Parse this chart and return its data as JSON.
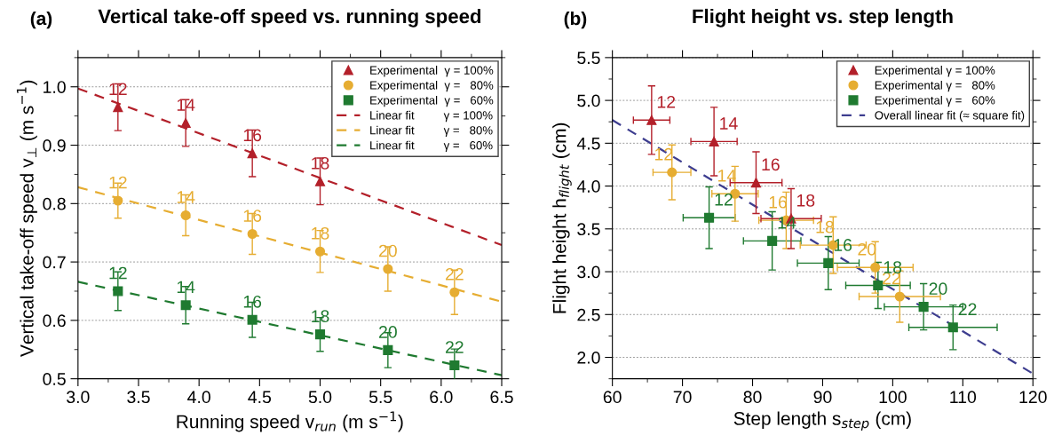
{
  "chart_data": [
    {
      "type": "scatter",
      "title": "Vertical take-off speed vs. running speed",
      "xlabel": "Running speed v$_{run}$ (m s$^{−1}$)",
      "ylabel": "Vertical take-off speed v$_{⊥}$ (m s$^{−1}$)",
      "annotations": [
        "(a)",
        {
          "text": "12",
          "x": 3.33,
          "y": 0.965
        },
        {
          "text": "14",
          "x": 3.89,
          "y": 0.938
        },
        {
          "text": "16",
          "x": 4.44,
          "y": 0.886
        },
        {
          "text": "18",
          "x": 5.0,
          "y": 0.838
        },
        {
          "text": "12",
          "x": 3.33,
          "y": 0.805
        },
        {
          "text": "14",
          "x": 3.89,
          "y": 0.78
        },
        {
          "text": "16",
          "x": 4.44,
          "y": 0.748
        },
        {
          "text": "18",
          "x": 5.0,
          "y": 0.718
        },
        {
          "text": "20",
          "x": 5.56,
          "y": 0.688
        },
        {
          "text": "22",
          "x": 6.11,
          "y": 0.648
        },
        {
          "text": "12",
          "x": 3.33,
          "y": 0.65
        },
        {
          "text": "14",
          "x": 3.89,
          "y": 0.626
        },
        {
          "text": "16",
          "x": 4.44,
          "y": 0.601
        },
        {
          "text": "18",
          "x": 5.0,
          "y": 0.576
        },
        {
          "text": "20",
          "x": 5.56,
          "y": 0.549
        },
        {
          "text": "22",
          "x": 6.11,
          "y": 0.523
        }
      ],
      "xlim": [
        3.0,
        6.5
      ],
      "xticks": [
        {
          "value": 3.0,
          "label": "3.0"
        },
        {
          "value": 3.5,
          "label": "3.5"
        },
        {
          "value": 4.0,
          "label": "4.0"
        },
        {
          "value": 4.5,
          "label": "4.5"
        },
        {
          "value": 5.0,
          "label": "5.0"
        },
        {
          "value": 5.5,
          "label": "5.5"
        },
        {
          "value": 6.0,
          "label": "6.0"
        },
        {
          "value": 6.5,
          "label": "6.5"
        }
      ],
      "ylim": [
        0.5,
        1.05
      ],
      "yticks": [
        0.5,
        0.6,
        0.7,
        0.8,
        0.9,
        {
          "value": 1.0,
          "label": "1.0"
        }
      ],
      "grid": "y",
      "legend": "top right",
      "series": [
        {
          "name": "Experimental  γ = 100%",
          "marker": "triangle",
          "color": "#b3202a",
          "x": [
            3.33,
            3.89,
            4.44,
            5.0
          ],
          "values": [
            0.965,
            0.938,
            0.886,
            0.838
          ],
          "errors": [
            0.04,
            0.04,
            0.04,
            0.04
          ]
        },
        {
          "name": "Experimental  γ =   80%",
          "marker": "circle",
          "color": "#e6ad32",
          "x": [
            3.33,
            3.89,
            4.44,
            5.0,
            5.56,
            6.11
          ],
          "values": [
            0.805,
            0.78,
            0.748,
            0.718,
            0.688,
            0.648
          ],
          "errors": [
            0.03,
            0.035,
            0.035,
            0.036,
            0.038,
            0.038
          ]
        },
        {
          "name": "Experimental  γ =   60%",
          "marker": "square",
          "color": "#1f7a30",
          "x": [
            3.33,
            3.89,
            4.44,
            5.0,
            5.56,
            6.11
          ],
          "values": [
            0.65,
            0.626,
            0.601,
            0.576,
            0.549,
            0.523
          ],
          "errors": [
            0.033,
            0.032,
            0.03,
            0.029,
            0.03,
            0.028
          ]
        },
        {
          "name": "Linear fit         γ = 100%",
          "type": "line",
          "line_style": "dashed",
          "color": "#b3202a",
          "x": [
            3.0,
            6.5
          ],
          "values": [
            0.997,
            0.729
          ]
        },
        {
          "name": "Linear fit         γ =   80%",
          "type": "line",
          "line_style": "dashed",
          "color": "#e6ad32",
          "x": [
            3.0,
            6.5
          ],
          "values": [
            0.828,
            0.632
          ]
        },
        {
          "name": "Linear fit         γ =   60%",
          "type": "line",
          "line_style": "dashed",
          "color": "#1f7a30",
          "x": [
            3.0,
            6.5
          ],
          "values": [
            0.666,
            0.506
          ]
        }
      ]
    },
    {
      "type": "scatter",
      "title": "Flight height vs. step length",
      "xlabel": "Step length s$_{step}$ (cm)",
      "ylabel": "Flight height h$_{flight}$ (cm)",
      "annotations": [
        "(b)",
        {
          "text": "12",
          "x": 65.6,
          "y": 4.77
        },
        {
          "text": "14",
          "x": 74.5,
          "y": 4.52
        },
        {
          "text": "16",
          "x": 80.5,
          "y": 4.04
        },
        {
          "text": "18",
          "x": 85.5,
          "y": 3.62
        },
        {
          "text": "12",
          "x": 68.5,
          "y": 4.16
        },
        {
          "text": "14",
          "x": 77.5,
          "y": 3.91
        },
        {
          "text": "16",
          "x": 84.8,
          "y": 3.6
        },
        {
          "text": "18",
          "x": 91.5,
          "y": 3.31
        },
        {
          "text": "20",
          "x": 97.5,
          "y": 3.05
        },
        {
          "text": "22",
          "x": 101.0,
          "y": 2.71
        },
        {
          "text": "12",
          "x": 73.8,
          "y": 3.63
        },
        {
          "text": "14",
          "x": 82.8,
          "y": 3.36
        },
        {
          "text": "16",
          "x": 90.8,
          "y": 3.1
        },
        {
          "text": "18",
          "x": 97.9,
          "y": 2.84
        },
        {
          "text": "20",
          "x": 104.4,
          "y": 2.59
        },
        {
          "text": "22",
          "x": 108.6,
          "y": 2.35
        }
      ],
      "xlim": [
        60,
        120
      ],
      "xticks": [
        60,
        70,
        80,
        90,
        100,
        110,
        120
      ],
      "ylim": [
        1.75,
        5.5
      ],
      "yticks": [
        {
          "value": 2.0,
          "label": "2.0"
        },
        2.5,
        {
          "value": 3.0,
          "label": "3.0"
        },
        3.5,
        {
          "value": 4.0,
          "label": "4.0"
        },
        4.5,
        {
          "value": 5.0,
          "label": "5.0"
        },
        5.5
      ],
      "grid": "y",
      "legend": "top right",
      "series": [
        {
          "name": "Experimental γ = 100%",
          "marker": "triangle",
          "color": "#b3202a",
          "x": [
            65.6,
            74.5,
            80.5,
            85.5
          ],
          "values": [
            4.77,
            4.52,
            4.04,
            3.62
          ],
          "errors": [
            0.4,
            0.4,
            0.36,
            0.35
          ],
          "xerrors": [
            2.6,
            3.3,
            3.7,
            4.3
          ]
        },
        {
          "name": "Experimental γ =   80%",
          "marker": "circle",
          "color": "#e6ad32",
          "x": [
            68.5,
            77.5,
            84.8,
            91.5,
            97.5,
            101.0
          ],
          "values": [
            4.16,
            3.91,
            3.6,
            3.31,
            3.05,
            2.71
          ],
          "errors": [
            0.32,
            0.32,
            0.33,
            0.33,
            0.3,
            0.3
          ],
          "xerrors": [
            2.7,
            3.3,
            3.9,
            4.7,
            5.4,
            5.8
          ]
        },
        {
          "name": "Experimental γ =   60%",
          "marker": "square",
          "color": "#1f7a30",
          "x": [
            73.8,
            82.8,
            90.8,
            97.9,
            104.4,
            108.6
          ],
          "values": [
            3.63,
            3.36,
            3.1,
            2.84,
            2.59,
            2.35
          ],
          "errors": [
            0.36,
            0.34,
            0.31,
            0.27,
            0.27,
            0.26
          ],
          "xerrors": [
            3.7,
            4.1,
            4.4,
            4.6,
            5.6,
            6.3
          ]
        },
        {
          "name": "Overall linear fit (≈ square fit)",
          "type": "line",
          "line_style": "dashed",
          "color": "#3d3d8f",
          "x": [
            60,
            120
          ],
          "values": [
            4.77,
            1.81
          ]
        }
      ]
    }
  ]
}
